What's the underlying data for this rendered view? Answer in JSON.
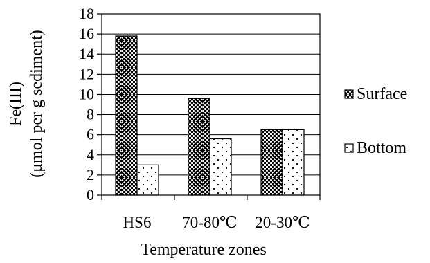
{
  "chart_data": {
    "type": "bar",
    "xlabel": "Temperature zones",
    "ylabel_lines": [
      "Fe(III)",
      "(μmol per g sediment)"
    ],
    "categories": [
      "HS6",
      "70-80℃",
      "20-30℃"
    ],
    "series": [
      {
        "name": "Surface",
        "values": [
          15.8,
          9.6,
          6.5
        ],
        "pattern": "checker"
      },
      {
        "name": "Bottom",
        "values": [
          3.0,
          5.6,
          6.5
        ],
        "pattern": "dots"
      }
    ],
    "yticks": [
      0,
      2,
      4,
      6,
      8,
      10,
      12,
      14,
      16,
      18
    ],
    "ylim": [
      0,
      18
    ],
    "grid": true,
    "legend_position": "right",
    "colors": {
      "ink": "#000000",
      "background": "#ffffff"
    }
  }
}
